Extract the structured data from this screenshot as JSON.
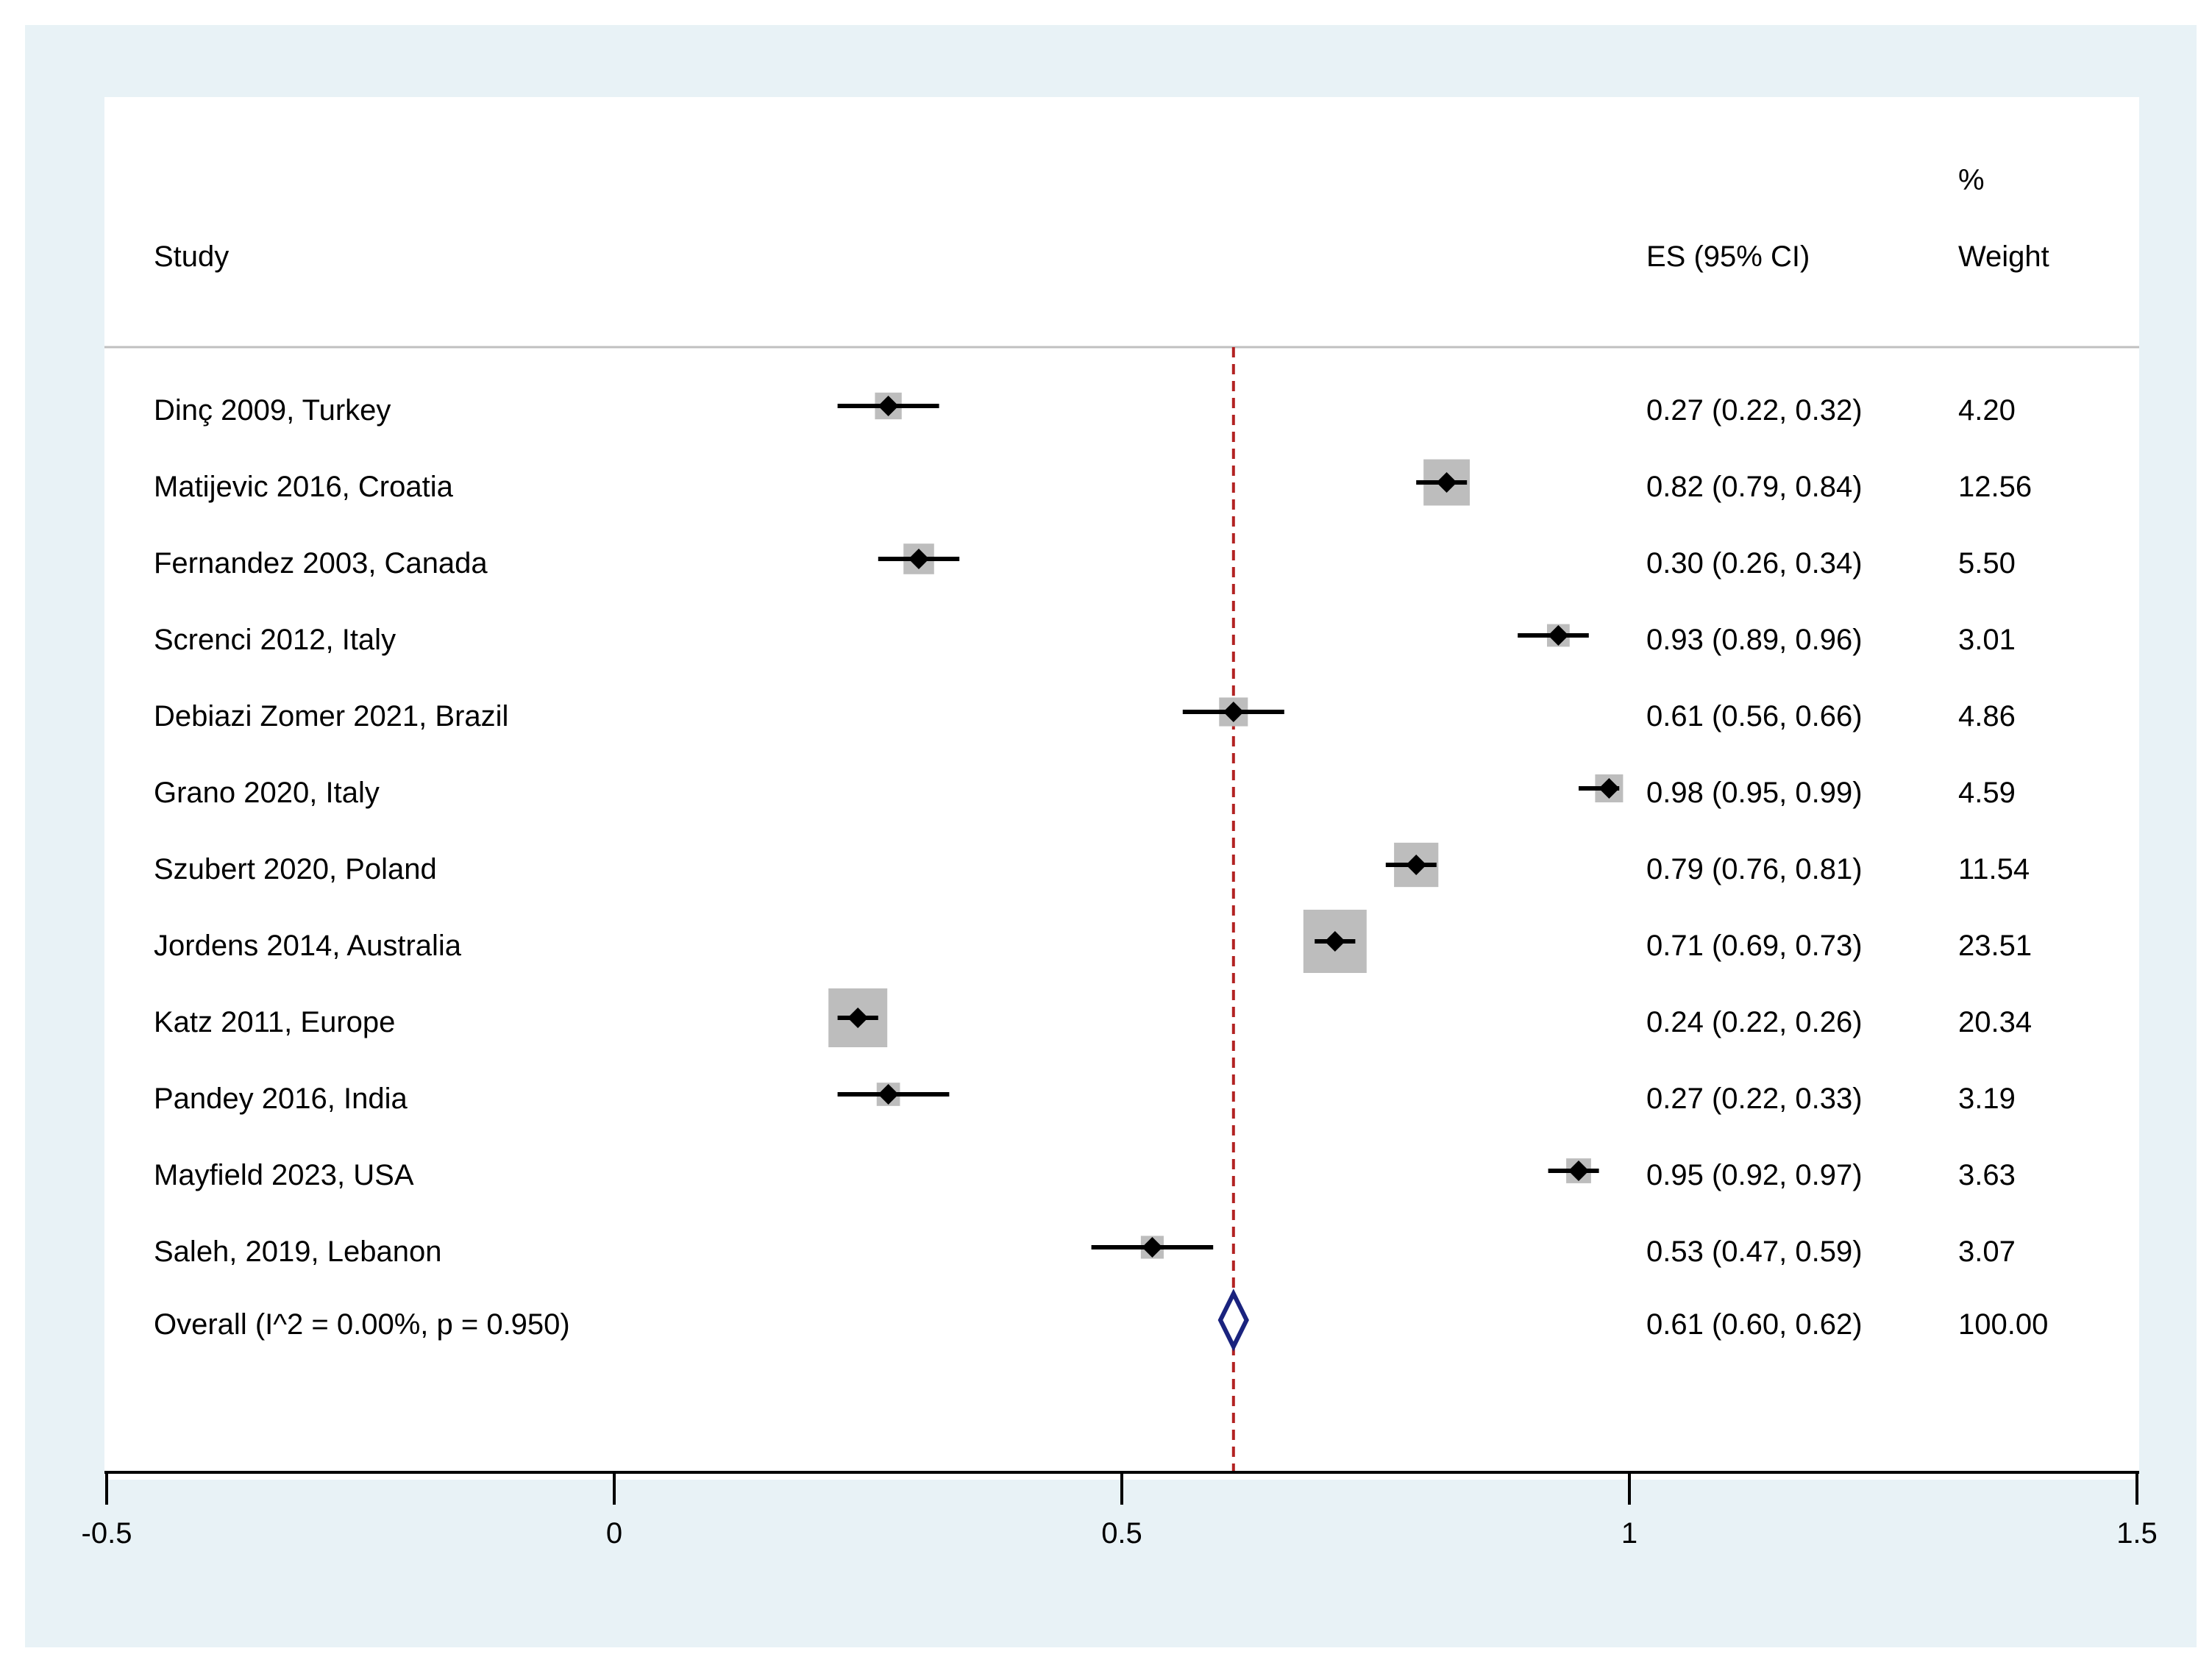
{
  "chart_data": {
    "type": "forest",
    "title": "",
    "headers": {
      "study": "Study",
      "es": "ES (95% CI)",
      "weight_pct": "%",
      "weight": "Weight"
    },
    "xlim": [
      -0.5,
      1.5
    ],
    "xticks": [
      -0.5,
      0,
      0.5,
      1,
      1.5
    ],
    "xtick_labels": [
      "-0.5",
      "0",
      "0.5",
      "1",
      "1.5"
    ],
    "reference_line": 0.61,
    "studies": [
      {
        "label": "Dinç 2009, Turkey",
        "es": 0.27,
        "lo": 0.22,
        "hi": 0.32,
        "es_text": "0.27 (0.22, 0.32)",
        "weight": 4.2,
        "weight_text": "4.20"
      },
      {
        "label": "Matijevic 2016, Croatia",
        "es": 0.82,
        "lo": 0.79,
        "hi": 0.84,
        "es_text": "0.82 (0.79, 0.84)",
        "weight": 12.56,
        "weight_text": "12.56"
      },
      {
        "label": "Fernandez 2003, Canada",
        "es": 0.3,
        "lo": 0.26,
        "hi": 0.34,
        "es_text": "0.30 (0.26, 0.34)",
        "weight": 5.5,
        "weight_text": "5.50"
      },
      {
        "label": "Screnci 2012, Italy",
        "es": 0.93,
        "lo": 0.89,
        "hi": 0.96,
        "es_text": "0.93 (0.89, 0.96)",
        "weight": 3.01,
        "weight_text": "3.01"
      },
      {
        "label": "Debiazi Zomer 2021, Brazil",
        "es": 0.61,
        "lo": 0.56,
        "hi": 0.66,
        "es_text": "0.61 (0.56, 0.66)",
        "weight": 4.86,
        "weight_text": "4.86"
      },
      {
        "label": "Grano 2020, Italy",
        "es": 0.98,
        "lo": 0.95,
        "hi": 0.99,
        "es_text": "0.98 (0.95, 0.99)",
        "weight": 4.59,
        "weight_text": "4.59"
      },
      {
        "label": "Szubert 2020, Poland",
        "es": 0.79,
        "lo": 0.76,
        "hi": 0.81,
        "es_text": "0.79 (0.76, 0.81)",
        "weight": 11.54,
        "weight_text": "11.54"
      },
      {
        "label": "Jordens 2014, Australia",
        "es": 0.71,
        "lo": 0.69,
        "hi": 0.73,
        "es_text": "0.71 (0.69, 0.73)",
        "weight": 23.51,
        "weight_text": "23.51"
      },
      {
        "label": "Katz 2011, Europe",
        "es": 0.24,
        "lo": 0.22,
        "hi": 0.26,
        "es_text": "0.24 (0.22, 0.26)",
        "weight": 20.34,
        "weight_text": "20.34"
      },
      {
        "label": "Pandey 2016, India",
        "es": 0.27,
        "lo": 0.22,
        "hi": 0.33,
        "es_text": "0.27 (0.22, 0.33)",
        "weight": 3.19,
        "weight_text": "3.19"
      },
      {
        "label": "Mayfield 2023, USA",
        "es": 0.95,
        "lo": 0.92,
        "hi": 0.97,
        "es_text": "0.95 (0.92, 0.97)",
        "weight": 3.63,
        "weight_text": "3.63"
      },
      {
        "label": "Saleh, 2019, Lebanon",
        "es": 0.53,
        "lo": 0.47,
        "hi": 0.59,
        "es_text": "0.53 (0.47, 0.59)",
        "weight": 3.07,
        "weight_text": "3.07"
      }
    ],
    "overall": {
      "label": "Overall  (I^2 = 0.00%, p = 0.950)",
      "es": 0.61,
      "lo": 0.6,
      "hi": 0.62,
      "es_text": "0.61 (0.60, 0.62)",
      "weight_text": "100.00"
    },
    "colors": {
      "outer_background": "#e8f2f6",
      "plot_background": "#ffffff",
      "weight_box": "#bdbdbd",
      "point": "#000000",
      "ci_line": "#000000",
      "reference_line": "#b22222",
      "overall_diamond": "#1a237e",
      "header_rule": "#c0c0c0"
    }
  }
}
